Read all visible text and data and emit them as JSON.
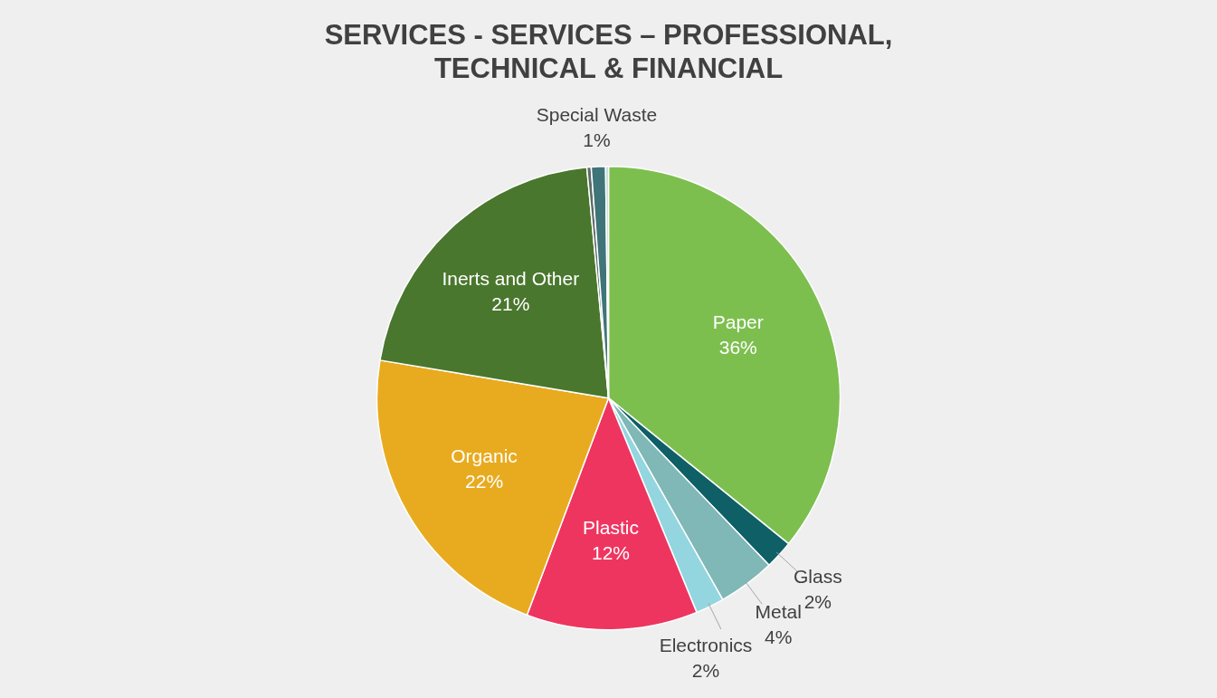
{
  "chart_data": {
    "type": "pie",
    "title": "SERVICES - SERVICES – PROFESSIONAL,\nTECHNICAL & FINANCIAL",
    "categories": [
      "Paper",
      "Glass",
      "Metal",
      "Electronics",
      "Plastic",
      "Organic",
      "Inerts and Other",
      null,
      "Special Waste",
      null
    ],
    "values": [
      36,
      2,
      4,
      2,
      12,
      22,
      21,
      0.3,
      1,
      0.2
    ],
    "value_labels": [
      "36%",
      "2%",
      "4%",
      "2%",
      "12%",
      "22%",
      "21%",
      null,
      "1%",
      null
    ],
    "colors": [
      "#7dbf4f",
      "#0e5f66",
      "#7fb8b6",
      "#93d6df",
      "#ee3560",
      "#e8ab20",
      "#4a772e",
      "#5b6b66",
      "#3f7478",
      "#bcd6d6"
    ],
    "legend": false
  }
}
